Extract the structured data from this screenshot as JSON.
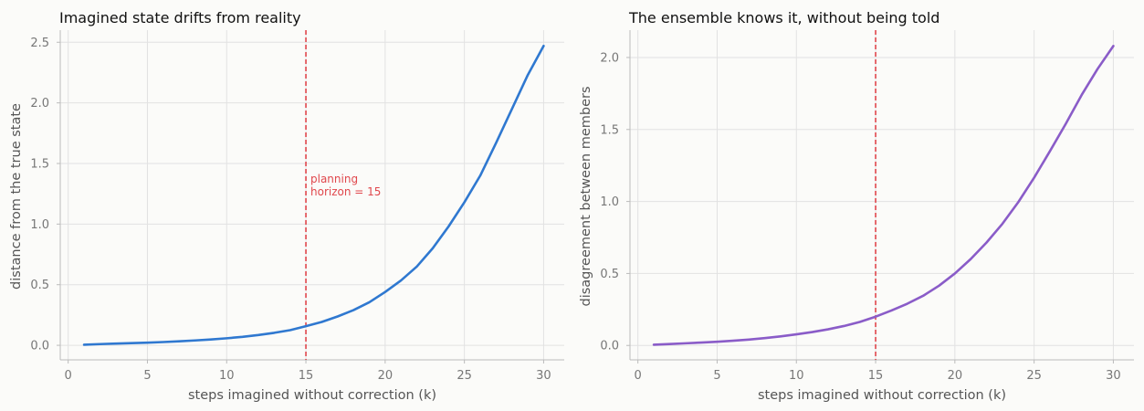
{
  "chart_data": [
    {
      "type": "line",
      "title": "Imagined state drifts from reality",
      "xlabel": "steps imagined without correction (k)",
      "ylabel": "distance from the true state",
      "xlim": [
        -0.5,
        31.3
      ],
      "ylim": [
        -0.12,
        2.6
      ],
      "xticks": [
        0,
        5,
        10,
        15,
        20,
        25,
        30
      ],
      "yticks": [
        0.0,
        0.5,
        1.0,
        1.5,
        2.0,
        2.5
      ],
      "ytick_labels": [
        "0.0",
        "0.5",
        "1.0",
        "1.5",
        "2.0",
        "2.5"
      ],
      "grid": true,
      "color": "#2f78d0",
      "vline": {
        "x": 15,
        "color": "#e0474c",
        "label_line1": "planning",
        "label_line2": "horizon = 15"
      },
      "series": [
        {
          "x": [
            1,
            2,
            3,
            4,
            5,
            6,
            7,
            8,
            9,
            10,
            11,
            12,
            13,
            14,
            15,
            16,
            17,
            18,
            19,
            20,
            21,
            22,
            23,
            24,
            25,
            26,
            27,
            28,
            29,
            30
          ],
          "values": [
            0.005,
            0.01,
            0.014,
            0.018,
            0.022,
            0.027,
            0.033,
            0.04,
            0.048,
            0.058,
            0.07,
            0.085,
            0.103,
            0.125,
            0.158,
            0.193,
            0.238,
            0.29,
            0.355,
            0.44,
            0.535,
            0.65,
            0.8,
            0.98,
            1.18,
            1.4,
            1.67,
            1.95,
            2.23,
            2.47
          ]
        }
      ]
    },
    {
      "type": "line",
      "title": "The ensemble knows it, without being told",
      "xlabel": "steps imagined without correction (k)",
      "ylabel": "disagreement between members",
      "xlim": [
        -0.5,
        31.3
      ],
      "ylim": [
        -0.1,
        2.19
      ],
      "xticks": [
        0,
        5,
        10,
        15,
        20,
        25,
        30
      ],
      "yticks": [
        0.0,
        0.5,
        1.0,
        1.5,
        2.0
      ],
      "ytick_labels": [
        "0.0",
        "0.5",
        "1.0",
        "1.5",
        "2.0"
      ],
      "grid": true,
      "color": "#8a5cc8",
      "vline": {
        "x": 15,
        "color": "#e0474c"
      },
      "series": [
        {
          "x": [
            1,
            2,
            3,
            4,
            5,
            6,
            7,
            8,
            9,
            10,
            11,
            12,
            13,
            14,
            15,
            16,
            17,
            18,
            19,
            20,
            21,
            22,
            23,
            24,
            25,
            26,
            27,
            28,
            29,
            30
          ],
          "values": [
            0.005,
            0.01,
            0.015,
            0.02,
            0.026,
            0.033,
            0.041,
            0.051,
            0.063,
            0.077,
            0.093,
            0.112,
            0.135,
            0.163,
            0.2,
            0.243,
            0.29,
            0.345,
            0.415,
            0.5,
            0.6,
            0.715,
            0.845,
            0.995,
            1.165,
            1.35,
            1.54,
            1.74,
            1.92,
            2.08
          ]
        }
      ]
    }
  ]
}
